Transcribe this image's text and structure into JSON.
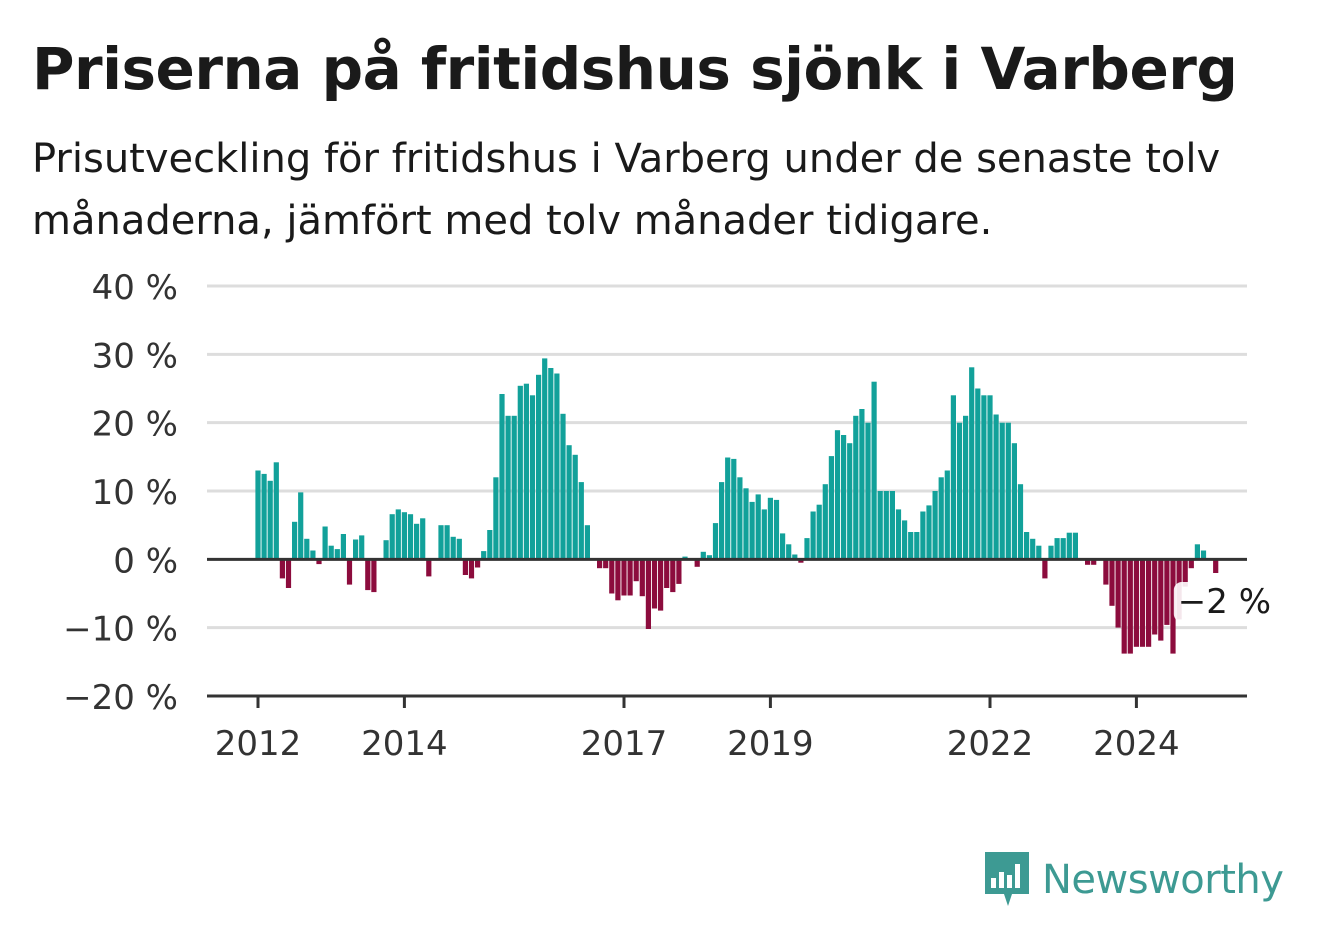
{
  "title": "Priserna på fritidshus sjönk i Varberg",
  "subtitle": "Prisutveckling för fritidshus i Varberg under de senaste tolv månaderna, jämfört med tolv månader tidigare.",
  "brand": {
    "name": "Newsworthy",
    "icon": "bar-chart-speech-bubble-icon",
    "color": "#3d9a93"
  },
  "colors": {
    "positive": "#12a19a",
    "negative": "#8c0c3d",
    "grid": "#dddddd",
    "axis": "#333333"
  },
  "chart_data": {
    "type": "bar",
    "ylim": [
      -20,
      40
    ],
    "yticks": [
      40,
      30,
      20,
      10,
      0,
      -10,
      -20
    ],
    "ytick_labels": [
      "40 %",
      "30 %",
      "20 %",
      "10 %",
      "0 %",
      "−10 %",
      "−20 %"
    ],
    "xtick_labels": [
      "2012",
      "2014",
      "2017",
      "2019",
      "2022",
      "2024"
    ],
    "start": "2012-01",
    "end": "2025-03",
    "grid": true,
    "annotation": {
      "label": "−2 %",
      "month": "2025-03",
      "value": -2
    },
    "values": [
      13,
      12.5,
      11.5,
      14.2,
      -2.8,
      -4.2,
      5.5,
      9.8,
      3,
      1.3,
      -0.7,
      4.8,
      2,
      1.5,
      3.7,
      -3.7,
      2.9,
      3.5,
      -4.5,
      -4.8,
      0,
      2.8,
      6.6,
      7.3,
      6.9,
      6.6,
      5.2,
      6,
      -2.5,
      0.2,
      5,
      5,
      3.3,
      3,
      -2.3,
      -2.8,
      -1.2,
      1.2,
      4.3,
      12,
      24.2,
      21,
      21,
      25.4,
      25.7,
      24,
      27,
      29.4,
      28,
      27.2,
      21.3,
      16.7,
      15.3,
      11.3,
      5,
      0,
      -1.3,
      -1.3,
      -5,
      -6,
      -5.3,
      -5.3,
      -3.2,
      -5.4,
      -10.2,
      -7.2,
      -7.5,
      -4.2,
      -4.8,
      -3.6,
      0.4,
      0,
      -1.1,
      1.1,
      0.6,
      5.3,
      11.3,
      14.9,
      14.7,
      12,
      10.4,
      8.4,
      9.5,
      7.3,
      9,
      8.7,
      3.8,
      2.2,
      0.7,
      -0.5,
      3.1,
      7,
      8,
      11,
      15.1,
      18.9,
      18.2,
      17,
      21,
      22,
      20,
      26,
      10,
      10,
      10,
      7.3,
      5.7,
      4,
      4,
      7,
      7.9,
      10,
      12,
      13,
      24,
      20,
      21,
      28.1,
      25,
      24,
      24,
      21.2,
      20,
      20,
      17,
      11,
      4,
      3,
      2,
      -2.8,
      2,
      3.1,
      3.1,
      3.9,
      3.9,
      0,
      -0.8,
      -0.8,
      0,
      -3.7,
      -6.8,
      -10,
      -13.8,
      -13.8,
      -12.8,
      -12.8,
      -12.8,
      -11,
      -11.9,
      -9.6,
      -13.8,
      -8.8,
      -4,
      -1.3,
      2.2,
      1.3,
      0,
      -2
    ]
  }
}
